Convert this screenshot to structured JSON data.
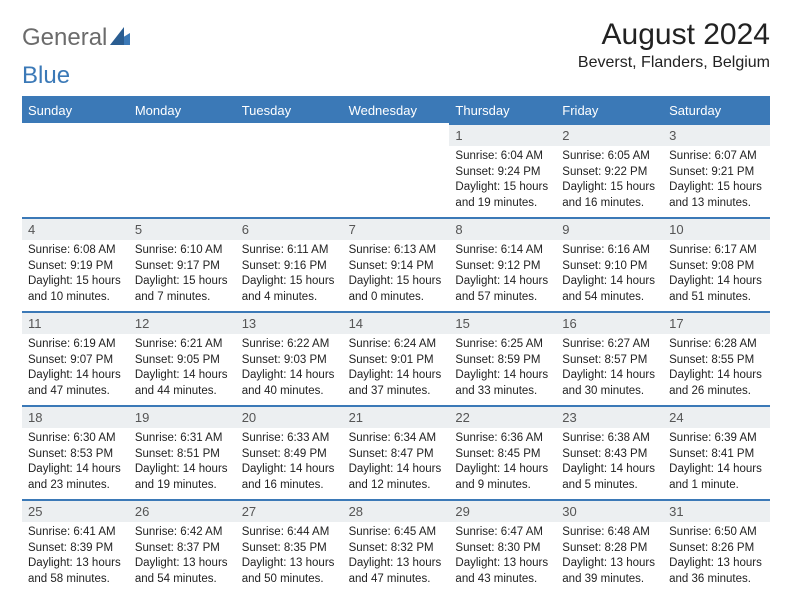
{
  "logo": {
    "text_part1": "General",
    "text_part2": "Blue"
  },
  "header": {
    "month_title": "August 2024",
    "location": "Beverst, Flanders, Belgium"
  },
  "colors": {
    "accent": "#3b79b7",
    "day_bg": "#eceff1",
    "text": "#222222",
    "logo_gray": "#6b6b6b"
  },
  "dow": [
    "Sunday",
    "Monday",
    "Tuesday",
    "Wednesday",
    "Thursday",
    "Friday",
    "Saturday"
  ],
  "weeks": [
    [
      null,
      null,
      null,
      null,
      {
        "n": "1",
        "sr": "6:04 AM",
        "ss": "9:24 PM",
        "dl": "15 hours and 19 minutes."
      },
      {
        "n": "2",
        "sr": "6:05 AM",
        "ss": "9:22 PM",
        "dl": "15 hours and 16 minutes."
      },
      {
        "n": "3",
        "sr": "6:07 AM",
        "ss": "9:21 PM",
        "dl": "15 hours and 13 minutes."
      }
    ],
    [
      {
        "n": "4",
        "sr": "6:08 AM",
        "ss": "9:19 PM",
        "dl": "15 hours and 10 minutes."
      },
      {
        "n": "5",
        "sr": "6:10 AM",
        "ss": "9:17 PM",
        "dl": "15 hours and 7 minutes."
      },
      {
        "n": "6",
        "sr": "6:11 AM",
        "ss": "9:16 PM",
        "dl": "15 hours and 4 minutes."
      },
      {
        "n": "7",
        "sr": "6:13 AM",
        "ss": "9:14 PM",
        "dl": "15 hours and 0 minutes."
      },
      {
        "n": "8",
        "sr": "6:14 AM",
        "ss": "9:12 PM",
        "dl": "14 hours and 57 minutes."
      },
      {
        "n": "9",
        "sr": "6:16 AM",
        "ss": "9:10 PM",
        "dl": "14 hours and 54 minutes."
      },
      {
        "n": "10",
        "sr": "6:17 AM",
        "ss": "9:08 PM",
        "dl": "14 hours and 51 minutes."
      }
    ],
    [
      {
        "n": "11",
        "sr": "6:19 AM",
        "ss": "9:07 PM",
        "dl": "14 hours and 47 minutes."
      },
      {
        "n": "12",
        "sr": "6:21 AM",
        "ss": "9:05 PM",
        "dl": "14 hours and 44 minutes."
      },
      {
        "n": "13",
        "sr": "6:22 AM",
        "ss": "9:03 PM",
        "dl": "14 hours and 40 minutes."
      },
      {
        "n": "14",
        "sr": "6:24 AM",
        "ss": "9:01 PM",
        "dl": "14 hours and 37 minutes."
      },
      {
        "n": "15",
        "sr": "6:25 AM",
        "ss": "8:59 PM",
        "dl": "14 hours and 33 minutes."
      },
      {
        "n": "16",
        "sr": "6:27 AM",
        "ss": "8:57 PM",
        "dl": "14 hours and 30 minutes."
      },
      {
        "n": "17",
        "sr": "6:28 AM",
        "ss": "8:55 PM",
        "dl": "14 hours and 26 minutes."
      }
    ],
    [
      {
        "n": "18",
        "sr": "6:30 AM",
        "ss": "8:53 PM",
        "dl": "14 hours and 23 minutes."
      },
      {
        "n": "19",
        "sr": "6:31 AM",
        "ss": "8:51 PM",
        "dl": "14 hours and 19 minutes."
      },
      {
        "n": "20",
        "sr": "6:33 AM",
        "ss": "8:49 PM",
        "dl": "14 hours and 16 minutes."
      },
      {
        "n": "21",
        "sr": "6:34 AM",
        "ss": "8:47 PM",
        "dl": "14 hours and 12 minutes."
      },
      {
        "n": "22",
        "sr": "6:36 AM",
        "ss": "8:45 PM",
        "dl": "14 hours and 9 minutes."
      },
      {
        "n": "23",
        "sr": "6:38 AM",
        "ss": "8:43 PM",
        "dl": "14 hours and 5 minutes."
      },
      {
        "n": "24",
        "sr": "6:39 AM",
        "ss": "8:41 PM",
        "dl": "14 hours and 1 minute."
      }
    ],
    [
      {
        "n": "25",
        "sr": "6:41 AM",
        "ss": "8:39 PM",
        "dl": "13 hours and 58 minutes."
      },
      {
        "n": "26",
        "sr": "6:42 AM",
        "ss": "8:37 PM",
        "dl": "13 hours and 54 minutes."
      },
      {
        "n": "27",
        "sr": "6:44 AM",
        "ss": "8:35 PM",
        "dl": "13 hours and 50 minutes."
      },
      {
        "n": "28",
        "sr": "6:45 AM",
        "ss": "8:32 PM",
        "dl": "13 hours and 47 minutes."
      },
      {
        "n": "29",
        "sr": "6:47 AM",
        "ss": "8:30 PM",
        "dl": "13 hours and 43 minutes."
      },
      {
        "n": "30",
        "sr": "6:48 AM",
        "ss": "8:28 PM",
        "dl": "13 hours and 39 minutes."
      },
      {
        "n": "31",
        "sr": "6:50 AM",
        "ss": "8:26 PM",
        "dl": "13 hours and 36 minutes."
      }
    ]
  ],
  "labels": {
    "sunrise": "Sunrise:",
    "sunset": "Sunset:",
    "daylight": "Daylight:"
  }
}
